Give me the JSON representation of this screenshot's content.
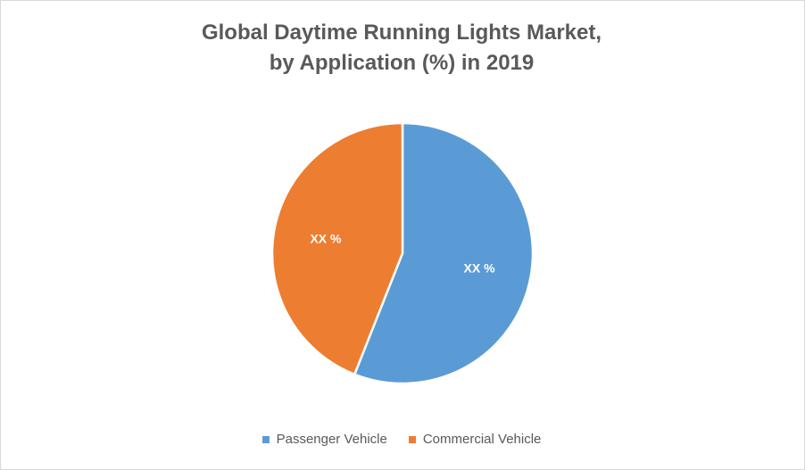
{
  "chart_data": {
    "type": "pie",
    "title_line1": "Global Daytime Running Lights Market,",
    "title_line2": "by Application (%) in 2019",
    "slices": [
      {
        "name": "Passenger Vehicle",
        "value": 56,
        "label": "XX %",
        "color": "#5b9bd5"
      },
      {
        "name": "Commercial Vehicle",
        "value": 44,
        "label": "XX %",
        "color": "#ed7d31"
      }
    ],
    "legend_position": "bottom"
  }
}
